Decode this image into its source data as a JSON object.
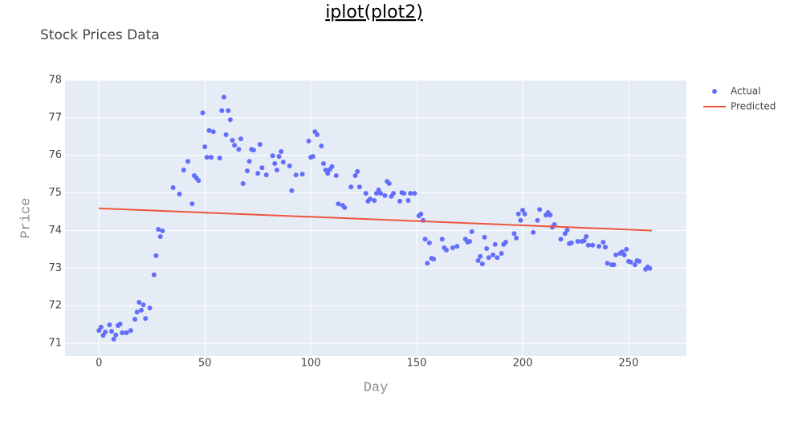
{
  "header": {
    "title": "iplot(plot2)"
  },
  "chart_data": {
    "type": "scatter",
    "title": "Stock Prices Data",
    "x_label": "Day",
    "y_label": "Price",
    "xlim": [
      -16,
      277.3
    ],
    "ylim": [
      70.66,
      78.0
    ],
    "xticks": [
      0,
      50,
      100,
      150,
      200,
      250
    ],
    "yticks": [
      71,
      72,
      73,
      74,
      75,
      76,
      77,
      78
    ],
    "grid": true,
    "legend": "right",
    "series": [
      {
        "name": "Actual",
        "mode": "markers",
        "color": "#636efa",
        "x": [
          0,
          1,
          2,
          3,
          5,
          6,
          7,
          8,
          9,
          10,
          11,
          13,
          15,
          17,
          18,
          19,
          20,
          21,
          22,
          24,
          26,
          27,
          28,
          29,
          30,
          35,
          38,
          40,
          42,
          44,
          45,
          46,
          47,
          49,
          50,
          51,
          52,
          53,
          54,
          57,
          58,
          59,
          60,
          61,
          62,
          63,
          64,
          66,
          67,
          68,
          70,
          71,
          72,
          73,
          75,
          76,
          77,
          79,
          82,
          83,
          84,
          85,
          86,
          87,
          90,
          91,
          93,
          96,
          99,
          100,
          101,
          102,
          103,
          105,
          106,
          107,
          108,
          109,
          110,
          112,
          113,
          115,
          116,
          119,
          121,
          122,
          123,
          126,
          127,
          128,
          130,
          131,
          132,
          133,
          135,
          136,
          137,
          138,
          139,
          142,
          143,
          144,
          146,
          147,
          149,
          151,
          152,
          153,
          154,
          155,
          156,
          157,
          158,
          162,
          163,
          164,
          167,
          169,
          173,
          174,
          175,
          176,
          179,
          180,
          181,
          182,
          183,
          184,
          186,
          187,
          188,
          190,
          191,
          192,
          196,
          197,
          198,
          199,
          200,
          201,
          205,
          207,
          208,
          211,
          212,
          213,
          214,
          215,
          218,
          220,
          221,
          222,
          223,
          226,
          228,
          229,
          230,
          231,
          233,
          236,
          238,
          239,
          240,
          242,
          243,
          244,
          246,
          247,
          248,
          249,
          250,
          251,
          253,
          254,
          255,
          258,
          259,
          260
        ],
        "values": [
          71.34,
          71.43,
          71.21,
          71.3,
          71.49,
          71.32,
          71.11,
          71.22,
          71.47,
          71.51,
          71.28,
          71.28,
          71.34,
          71.64,
          71.83,
          72.09,
          71.88,
          72.02,
          71.66,
          71.94,
          72.82,
          73.33,
          74.03,
          73.84,
          73.99,
          75.14,
          74.97,
          75.61,
          75.84,
          74.71,
          75.46,
          75.4,
          75.33,
          77.13,
          76.23,
          75.95,
          76.66,
          75.95,
          76.63,
          75.93,
          77.19,
          77.55,
          76.55,
          77.19,
          76.95,
          76.4,
          76.27,
          76.16,
          76.44,
          75.25,
          75.59,
          75.84,
          76.16,
          76.14,
          75.52,
          76.29,
          75.67,
          75.48,
          75.99,
          75.78,
          75.61,
          75.97,
          76.1,
          75.82,
          75.72,
          75.06,
          75.48,
          75.5,
          76.38,
          75.95,
          75.97,
          76.63,
          76.55,
          76.25,
          75.78,
          75.61,
          75.52,
          75.63,
          75.7,
          75.46,
          74.71,
          74.67,
          74.61,
          75.16,
          75.46,
          75.57,
          75.16,
          74.99,
          74.78,
          74.84,
          74.8,
          74.99,
          75.08,
          74.99,
          74.93,
          75.31,
          75.25,
          74.91,
          74.99,
          74.78,
          75.01,
          74.99,
          74.8,
          74.99,
          74.99,
          74.39,
          74.44,
          74.27,
          73.77,
          73.13,
          73.67,
          73.26,
          73.24,
          73.77,
          73.54,
          73.48,
          73.54,
          73.58,
          73.77,
          73.69,
          73.71,
          73.97,
          73.2,
          73.31,
          73.11,
          73.82,
          73.52,
          73.28,
          73.35,
          73.63,
          73.28,
          73.39,
          73.63,
          73.69,
          73.92,
          73.8,
          74.44,
          74.27,
          74.54,
          74.44,
          73.95,
          74.27,
          74.56,
          74.41,
          74.48,
          74.41,
          74.09,
          74.16,
          73.77,
          73.92,
          74.01,
          73.65,
          73.67,
          73.71,
          73.71,
          73.73,
          73.84,
          73.61,
          73.61,
          73.58,
          73.69,
          73.56,
          73.13,
          73.09,
          73.09,
          73.35,
          73.39,
          73.43,
          73.35,
          73.5,
          73.18,
          73.16,
          73.09,
          73.2,
          73.18,
          72.97,
          73.03,
          72.99
        ]
      },
      {
        "name": "Predicted",
        "mode": "lines",
        "color": "#ef553b",
        "x": [
          0,
          261
        ],
        "values": [
          74.59,
          74.0
        ]
      }
    ]
  }
}
